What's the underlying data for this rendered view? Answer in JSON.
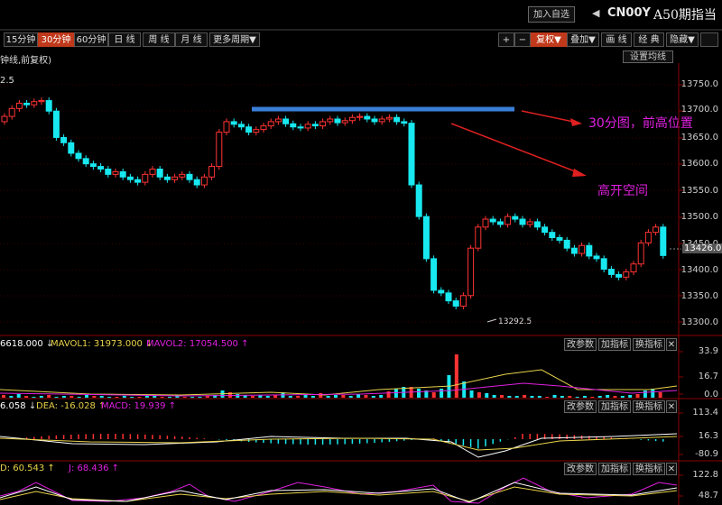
{
  "header": {
    "add_watchlist": "加入自选",
    "arrow_icon": "triangle-left-icon",
    "symbol": "CN00Y",
    "name": "A50期指当"
  },
  "periods": [
    {
      "label": "15分钟",
      "active": false
    },
    {
      "label": "30分钟",
      "active": true
    },
    {
      "label": "60分钟",
      "active": false
    },
    {
      "label": "日 线",
      "active": false
    },
    {
      "label": "周 线",
      "active": false
    },
    {
      "label": "月 线",
      "active": false
    },
    {
      "label": "更多周期▼",
      "active": false
    }
  ],
  "right_tools": [
    {
      "label": "+",
      "active": false
    },
    {
      "label": "−",
      "active": false
    },
    {
      "label": "复权▼",
      "active": true
    },
    {
      "label": "叠加▼",
      "active": false
    },
    {
      "label": "画 线",
      "active": false
    },
    {
      "label": "经 典",
      "active": false
    },
    {
      "label": "隐藏▼",
      "active": false
    },
    {
      "label": "",
      "active": false
    }
  ],
  "main_chart": {
    "subtitle": "钟线,前复权)",
    "settings_btn": "设置均线",
    "left_partial": "2.5",
    "y_labels": [
      "13750.0",
      "13700.0",
      "13650.0",
      "13600.0",
      "13550.0",
      "13500.0",
      "13450.0",
      "13400.0",
      "13350.0",
      "13300.0"
    ],
    "current_price": "13426.0",
    "low_marker": "13292.5",
    "annotation1": "30分图，前高位置",
    "annotation2": "高开空间",
    "colors": {
      "up": "#ff3333",
      "down": "#18e8f0",
      "blue_line": "#3a7fd8",
      "arrow": "#e02020",
      "annot": "#e020e0"
    }
  },
  "volume_panel": {
    "t1": "6618.000",
    "t2": "MAVOL1: 31973.000",
    "t3": "MAVOL2: 17054.500",
    "y_labels": [
      "33.9",
      "16.7",
      "0.0"
    ]
  },
  "macd_panel": {
    "t1": "6.058",
    "t2": "DEA: -16.028",
    "t3": "MACD: 19.939",
    "y_labels": [
      "113.4",
      "16.3",
      "-80.9"
    ]
  },
  "kdj_panel": {
    "t1": "D: 60.543",
    "t2": "J: 68.436",
    "y_labels": [
      "122.8",
      "48.7"
    ]
  },
  "panel_buttons": [
    "改参数",
    "加指标",
    "换指标",
    "✕"
  ]
}
